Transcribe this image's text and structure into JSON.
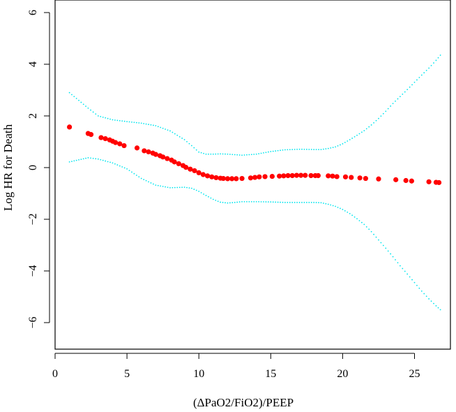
{
  "chart_data": {
    "type": "scatter",
    "title": "",
    "xlabel": "(ΔPaO2/FiO2)/PEEP",
    "ylabel": "Log HR for Death",
    "xlim": [
      0,
      27.5
    ],
    "ylim": [
      -7,
      6
    ],
    "x_ticks": [
      0,
      5,
      10,
      15,
      20,
      25
    ],
    "y_ticks": [
      -6,
      -4,
      -2,
      0,
      2,
      4,
      6
    ],
    "grid": false,
    "legend": "none",
    "colors": {
      "estimate": "#ff0000",
      "confidence_band": "#00e5ee",
      "axis": "#000000"
    },
    "series": [
      {
        "x": [
          1.0,
          2.3,
          2.5,
          3.2,
          3.5,
          3.8,
          4.0,
          4.2,
          4.5,
          4.8,
          5.7,
          6.2,
          6.5,
          6.8,
          7.0,
          7.3,
          7.5,
          7.8,
          8.1,
          8.3,
          8.6,
          8.9,
          9.1,
          9.4,
          9.7,
          10.0,
          10.3,
          10.6,
          10.9,
          11.2,
          11.5,
          11.7,
          12.0,
          12.3,
          12.6,
          13.0,
          13.6,
          13.9,
          14.2,
          14.6,
          15.1,
          15.6,
          15.9,
          16.2,
          16.5,
          16.8,
          17.1,
          17.4,
          17.8,
          18.1,
          18.3,
          19.0,
          19.3,
          19.6,
          20.2,
          20.6,
          21.2,
          21.6,
          22.5,
          23.7,
          24.4,
          24.8,
          26.0,
          26.5,
          26.7
        ],
        "y": [
          1.57,
          1.32,
          1.28,
          1.16,
          1.12,
          1.07,
          1.02,
          0.97,
          0.92,
          0.85,
          0.76,
          0.65,
          0.61,
          0.56,
          0.51,
          0.46,
          0.41,
          0.35,
          0.29,
          0.22,
          0.15,
          0.08,
          0.01,
          -0.06,
          -0.12,
          -0.2,
          -0.27,
          -0.32,
          -0.36,
          -0.39,
          -0.41,
          -0.42,
          -0.43,
          -0.43,
          -0.43,
          -0.42,
          -0.4,
          -0.38,
          -0.36,
          -0.35,
          -0.34,
          -0.33,
          -0.32,
          -0.31,
          -0.31,
          -0.3,
          -0.3,
          -0.3,
          -0.31,
          -0.31,
          -0.31,
          -0.32,
          -0.33,
          -0.35,
          -0.36,
          -0.38,
          -0.4,
          -0.42,
          -0.44,
          -0.47,
          -0.5,
          -0.52,
          -0.55,
          -0.57,
          -0.58
        ]
      },
      {
        "x": [
          1.0,
          2.3,
          3.0,
          4.0,
          5.0,
          6.0,
          7.0,
          8.0,
          9.0,
          9.5,
          10.0,
          10.5,
          11.0,
          11.5,
          12.0,
          12.5,
          13.0,
          14.0,
          15.0,
          16.0,
          17.0,
          18.0,
          18.5,
          19.0,
          19.5,
          20.0,
          20.5,
          21.0,
          21.5,
          22.0,
          22.5,
          23.0,
          23.5,
          24.0,
          24.5,
          25.0,
          25.5,
          26.0,
          26.5,
          26.8
        ],
        "y": [
          2.9,
          2.3,
          2.0,
          1.85,
          1.78,
          1.72,
          1.62,
          1.42,
          1.08,
          0.85,
          0.6,
          0.52,
          0.52,
          0.53,
          0.52,
          0.5,
          0.48,
          0.52,
          0.62,
          0.69,
          0.71,
          0.7,
          0.7,
          0.74,
          0.8,
          0.92,
          1.08,
          1.25,
          1.43,
          1.65,
          1.9,
          2.18,
          2.48,
          2.75,
          3.02,
          3.3,
          3.58,
          3.85,
          4.15,
          4.35
        ]
      },
      {
        "x": [
          1.0,
          2.3,
          3.0,
          4.0,
          5.0,
          6.0,
          7.0,
          8.0,
          9.0,
          9.5,
          10.0,
          10.5,
          11.0,
          11.5,
          12.0,
          12.5,
          13.0,
          14.0,
          15.0,
          16.0,
          17.0,
          18.0,
          18.5,
          19.0,
          19.5,
          20.0,
          20.5,
          21.0,
          21.5,
          22.0,
          22.5,
          23.0,
          23.5,
          24.0,
          24.5,
          25.0,
          25.5,
          26.0,
          26.5,
          26.8
        ],
        "y": [
          0.22,
          0.38,
          0.33,
          0.18,
          -0.05,
          -0.42,
          -0.68,
          -0.78,
          -0.76,
          -0.8,
          -0.92,
          -1.08,
          -1.23,
          -1.34,
          -1.37,
          -1.35,
          -1.32,
          -1.32,
          -1.33,
          -1.35,
          -1.35,
          -1.35,
          -1.36,
          -1.42,
          -1.5,
          -1.62,
          -1.78,
          -1.98,
          -2.2,
          -2.48,
          -2.8,
          -3.12,
          -3.45,
          -3.8,
          -4.12,
          -4.45,
          -4.78,
          -5.08,
          -5.35,
          -5.5
        ]
      }
    ]
  }
}
